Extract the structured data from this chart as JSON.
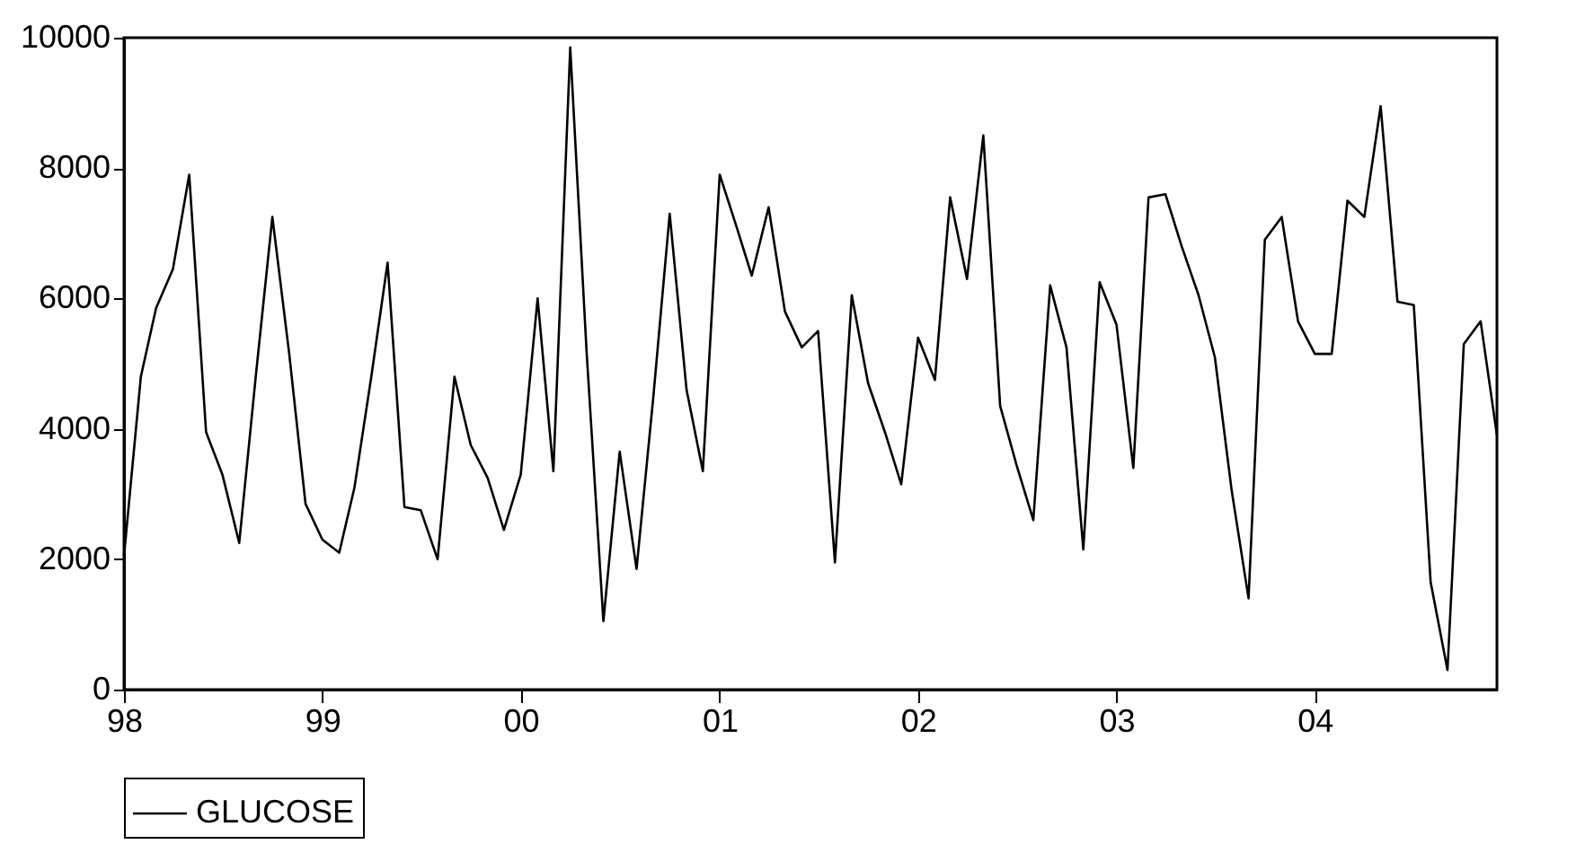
{
  "chart_data": {
    "type": "line",
    "x": [
      "1998-01",
      "1998-02",
      "1998-03",
      "1998-04",
      "1998-05",
      "1998-06",
      "1998-07",
      "1998-08",
      "1998-09",
      "1998-10",
      "1998-11",
      "1998-12",
      "1999-01",
      "1999-02",
      "1999-03",
      "1999-04",
      "1999-05",
      "1999-06",
      "1999-07",
      "1999-08",
      "1999-09",
      "1999-10",
      "1999-11",
      "1999-12",
      "2000-01",
      "2000-02",
      "2000-03",
      "2000-04",
      "2000-05",
      "2000-06",
      "2000-07",
      "2000-08",
      "2000-09",
      "2000-10",
      "2000-11",
      "2000-12",
      "2001-01",
      "2001-02",
      "2001-03",
      "2001-04",
      "2001-05",
      "2001-06",
      "2001-07",
      "2001-08",
      "2001-09",
      "2001-10",
      "2001-11",
      "2001-12",
      "2002-01",
      "2002-02",
      "2002-03",
      "2002-04",
      "2002-05",
      "2002-06",
      "2002-07",
      "2002-08",
      "2002-09",
      "2002-10",
      "2002-11",
      "2002-12",
      "2003-01",
      "2003-02",
      "2003-03",
      "2003-04",
      "2003-05",
      "2003-06",
      "2003-07",
      "2003-08",
      "2003-09",
      "2003-10",
      "2003-11",
      "2003-12",
      "2004-01",
      "2004-02",
      "2004-03",
      "2004-04",
      "2004-05",
      "2004-06",
      "2004-07",
      "2004-08",
      "2004-09",
      "2004-10",
      "2004-11",
      "2004-12"
    ],
    "series": [
      {
        "name": "GLUCOSE",
        "color": "#000000",
        "values": [
          2050,
          4800,
          5850,
          6450,
          7900,
          3950,
          3300,
          2250,
          4850,
          7250,
          5150,
          2850,
          2300,
          2100,
          3100,
          4800,
          6550,
          2800,
          2750,
          2000,
          4800,
          3750,
          3250,
          2450,
          3300,
          6000,
          3350,
          9850,
          5200,
          1050,
          3650,
          1850,
          4500,
          7300,
          4600,
          3350,
          7900,
          7100,
          6350,
          7400,
          5800,
          5250,
          5500,
          1950,
          6050,
          4700,
          3950,
          3150,
          5400,
          4750,
          7550,
          6300,
          8500,
          4350,
          3450,
          2600,
          6200,
          5250,
          2150,
          6250,
          5600,
          3400,
          7550,
          7600,
          6800,
          6050,
          5100,
          3050,
          1400,
          6900,
          7250,
          5650,
          5150,
          5150,
          7500,
          7250,
          8950,
          5950,
          5900,
          1650,
          300,
          5300,
          5650,
          3900
        ]
      }
    ],
    "xlim": [
      "1998-01",
      "2004-12"
    ],
    "xticks": [
      {
        "value": "1998-01",
        "label": "98"
      },
      {
        "value": "1999-01",
        "label": "99"
      },
      {
        "value": "2000-01",
        "label": "00"
      },
      {
        "value": "2001-01",
        "label": "01"
      },
      {
        "value": "2002-01",
        "label": "02"
      },
      {
        "value": "2003-01",
        "label": "03"
      },
      {
        "value": "2004-01",
        "label": "04"
      }
    ],
    "ylim": [
      0,
      10000
    ],
    "yticks": [
      0,
      2000,
      4000,
      6000,
      8000,
      10000
    ],
    "grid": false,
    "legend": "bottom",
    "marker": "none",
    "line_style": "solid"
  }
}
